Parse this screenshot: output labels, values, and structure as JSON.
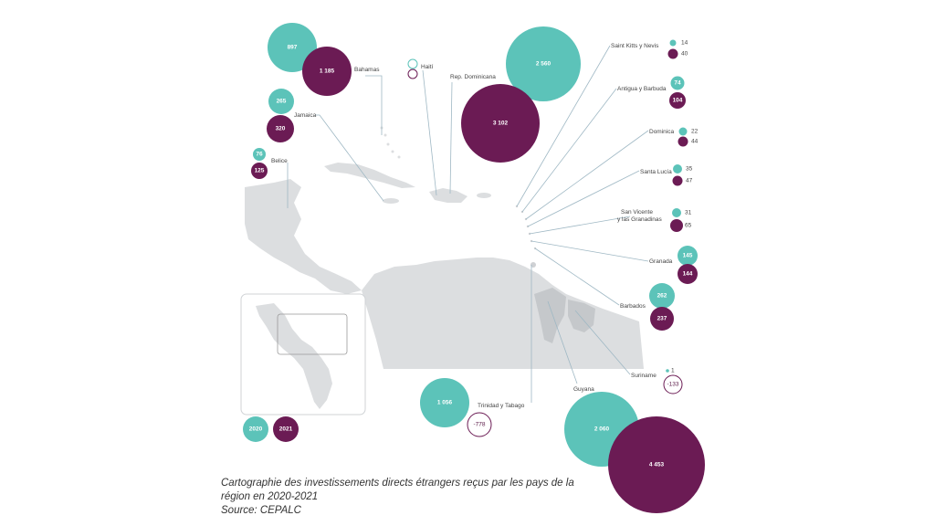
{
  "colors": {
    "y2020": "#5cc3b9",
    "y2021": "#6b1b54",
    "land": "#dcdee0",
    "leader": "#9fb8c4"
  },
  "legend": {
    "y2020": "2020",
    "y2021": "2021"
  },
  "countries": [
    {
      "name": "Bahamas",
      "v2020": "897",
      "v2021": "1 185"
    },
    {
      "name": "Jamaica",
      "v2020": "265",
      "v2021": "320"
    },
    {
      "name": "Belice",
      "v2020": "76",
      "v2021": "125"
    },
    {
      "name": "Haití",
      "v2020": "",
      "v2021": ""
    },
    {
      "name": "Rep. Dominicana",
      "v2020": "2 560",
      "v2021": "3 102"
    },
    {
      "name": "Saint Kitts y Nevis",
      "v2020": "14",
      "v2021": "40"
    },
    {
      "name": "Antigua y Barbuda",
      "v2020": "74",
      "v2021": "104"
    },
    {
      "name": "Dominica",
      "v2020": "22",
      "v2021": "44"
    },
    {
      "name": "Santa Lucía",
      "v2020": "35",
      "v2021": "47"
    },
    {
      "name": "San Vicente\ny las Granadinas",
      "name_l1": "San Vicente",
      "name_l2": "y las Granadinas",
      "v2020": "31",
      "v2021": "65"
    },
    {
      "name": "Granada",
      "v2020": "145",
      "v2021": "144"
    },
    {
      "name": "Barbados",
      "v2020": "262",
      "v2021": "237"
    },
    {
      "name": "Suriname",
      "v2020": "1",
      "v2021": "-133"
    },
    {
      "name": "Trinidad y Tabago",
      "v2020": "1 056",
      "v2021": "-778"
    },
    {
      "name": "Guyana",
      "v2020": "2 060",
      "v2021": "4 453"
    }
  ],
  "caption": {
    "line1": "Cartographie des investissements directs étrangers reçus par les pays de la",
    "line2": "région en 2020-2021",
    "line3": "Source: CEPALC"
  }
}
